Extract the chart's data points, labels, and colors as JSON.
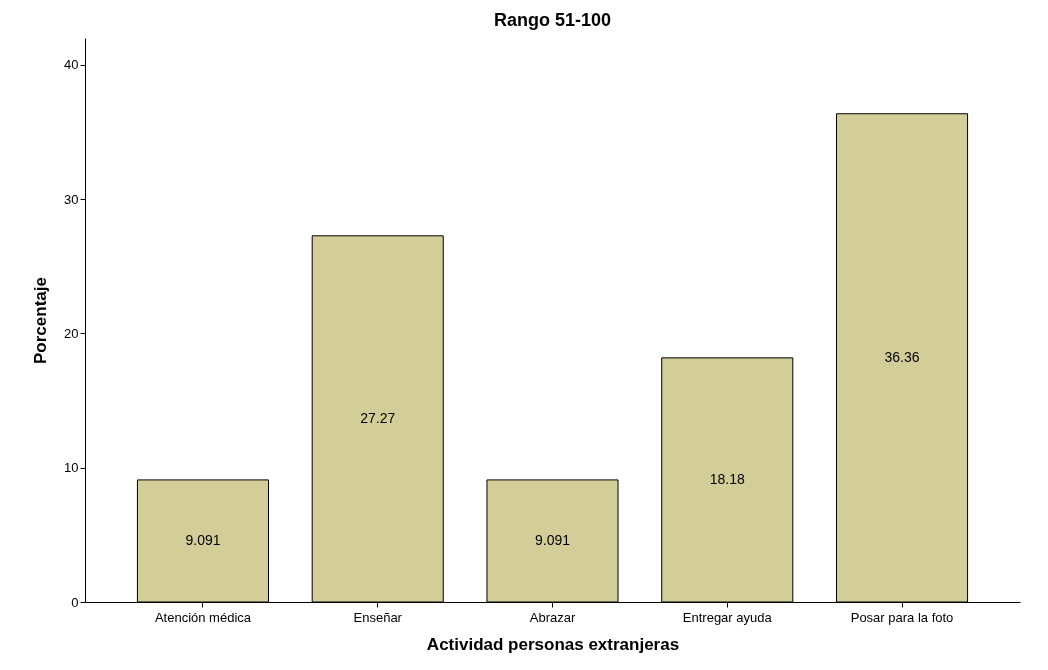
{
  "chart_data": {
    "type": "bar",
    "title": "Rango 51-100",
    "xlabel": "Actividad personas extranjeras",
    "ylabel": "Porcentaje",
    "categories": [
      "Atención médica",
      "Enseñar",
      "Abrazar",
      "Entregar ayuda",
      "Posar para la foto"
    ],
    "values": [
      9.091,
      27.27,
      9.091,
      18.18,
      36.36
    ],
    "color": "#d3ce97",
    "ylim": [
      0,
      42
    ],
    "yticks": [
      0,
      10,
      20,
      30,
      40
    ],
    "grid": false,
    "data_labels": true
  }
}
